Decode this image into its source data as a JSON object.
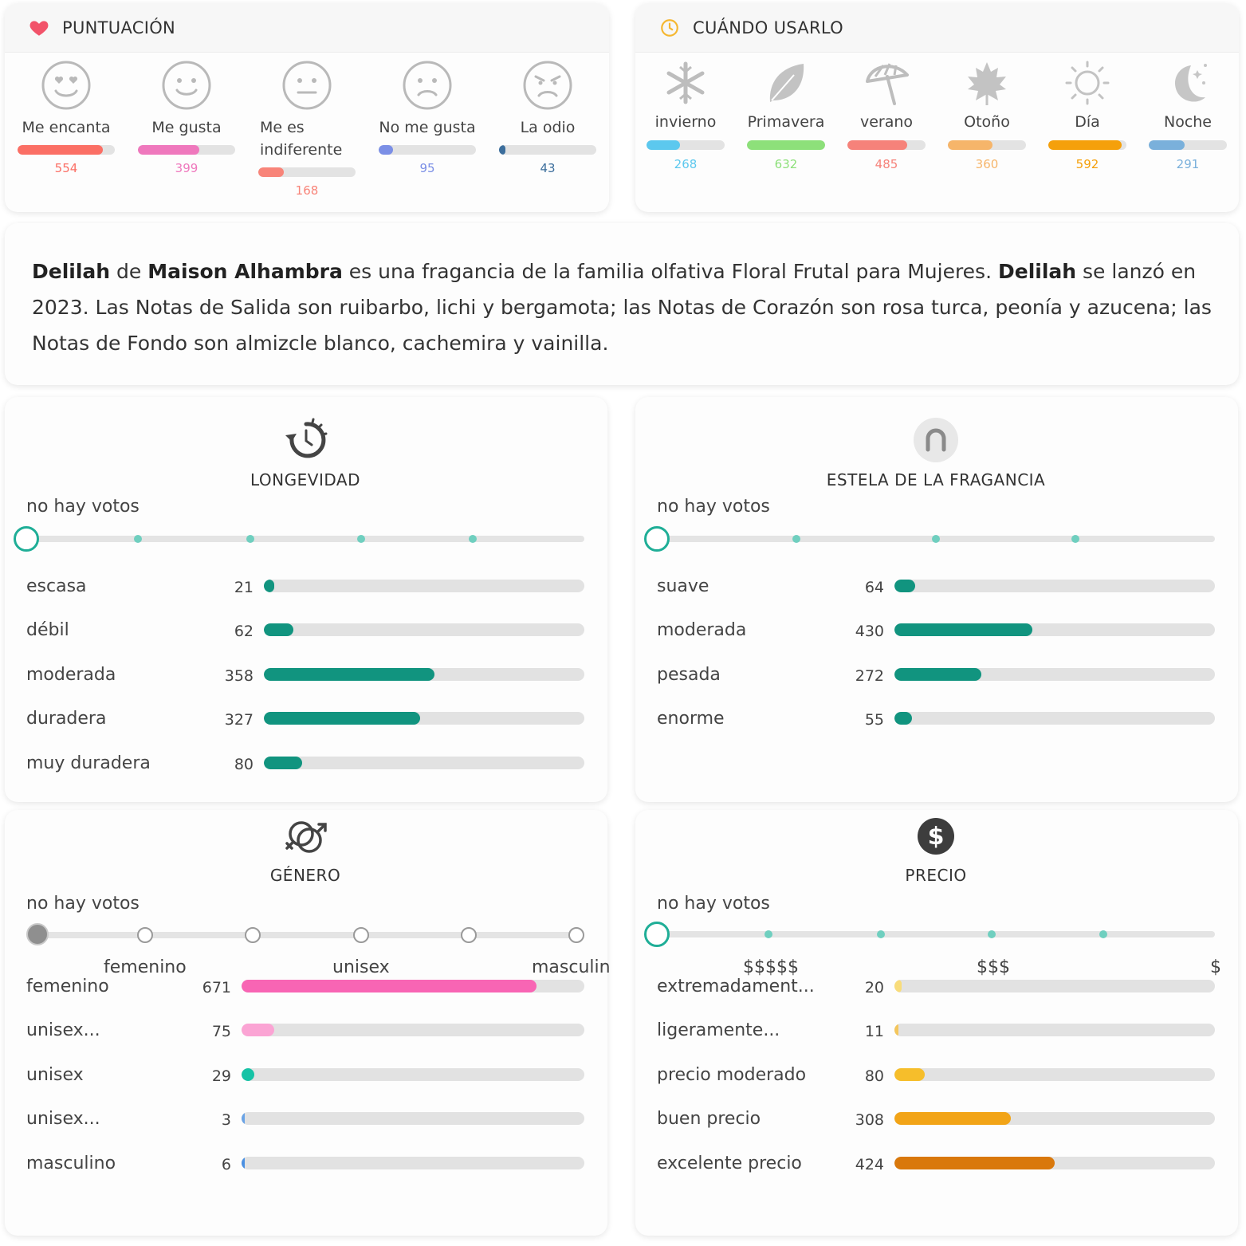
{
  "rating": {
    "title": "PUNTUACIÓN",
    "items": [
      {
        "label": "Me encanta",
        "count": "554",
        "value": 554,
        "color": "#fb6f65"
      },
      {
        "label": "Me gusta",
        "count": "399",
        "value": 399,
        "color": "#ef78bd"
      },
      {
        "label": "Me es indiferente",
        "count": "168",
        "value": 168,
        "color": "#f88479"
      },
      {
        "label": "No me gusta",
        "count": "95",
        "value": 95,
        "color": "#7b8fe6"
      },
      {
        "label": "La odio",
        "count": "43",
        "value": 43,
        "color": "#3c6e9c"
      }
    ],
    "max": 632
  },
  "when": {
    "title": "CUÁNDO USARLO",
    "items": [
      {
        "label": "invierno",
        "count": "268",
        "value": 268,
        "color": "#5cc8ee"
      },
      {
        "label": "Primavera",
        "count": "632",
        "value": 632,
        "color": "#8de07a"
      },
      {
        "label": "verano",
        "count": "485",
        "value": 485,
        "color": "#f6827a"
      },
      {
        "label": "Otoño",
        "count": "360",
        "value": 360,
        "color": "#f6b56a"
      },
      {
        "label": "Día",
        "count": "592",
        "value": 592,
        "color": "#f5a00b"
      },
      {
        "label": "Noche",
        "count": "291",
        "value": 291,
        "color": "#7ab0db"
      }
    ],
    "max": 632
  },
  "description": {
    "name": "Delilah",
    "de": " de ",
    "brand": "Maison Alhambra",
    "part1": " es una fragancia de la familia olfativa Floral Frutal para Mujeres. ",
    "name2": "Delilah",
    "part2": " se lanzó en 2023. Las Notas de Salida son ruibarbo, lichi y bergamota; las Notas de Corazón son rosa turca, peonía y azucena; las Notas de Fondo son almizcle blanco, cachemira y vainilla."
  },
  "longevity": {
    "title": "LONGEVIDAD",
    "novote": "no hay votos",
    "color": "#11947f",
    "max": 671,
    "rows": [
      {
        "label": "escasa",
        "count": "21",
        "value": 21
      },
      {
        "label": "débil",
        "count": "62",
        "value": 62
      },
      {
        "label": "moderada",
        "count": "358",
        "value": 358
      },
      {
        "label": "duradera",
        "count": "327",
        "value": 327
      },
      {
        "label": "muy duradera",
        "count": "80",
        "value": 80
      }
    ]
  },
  "sillage": {
    "title": "ESTELA DE LA FRAGANCIA",
    "novote": "no hay votos",
    "color": "#11947f",
    "max": 1000,
    "rows": [
      {
        "label": "suave",
        "count": "64",
        "value": 64
      },
      {
        "label": "moderada",
        "count": "430",
        "value": 430
      },
      {
        "label": "pesada",
        "count": "272",
        "value": 272
      },
      {
        "label": "enorme",
        "count": "55",
        "value": 55
      }
    ]
  },
  "gender": {
    "title": "GÉNERO",
    "novote": "no hay votos",
    "ticks": [
      "femenino",
      "unisex",
      "masculin"
    ],
    "max": 780,
    "rows": [
      {
        "label": "femenino",
        "count": "671",
        "value": 671,
        "color": "#f865b4"
      },
      {
        "label": "unisex...",
        "count": "75",
        "value": 75,
        "color": "#fba4d4"
      },
      {
        "label": "unisex",
        "count": "29",
        "value": 29,
        "color": "#16c3a6"
      },
      {
        "label": "unisex...",
        "count": "3",
        "value": 3,
        "color": "#6aa3e5"
      },
      {
        "label": "masculino",
        "count": "6",
        "value": 6,
        "color": "#4a90e2"
      }
    ]
  },
  "price": {
    "title": "PRECIO",
    "novote": "no hay votos",
    "ticks": [
      "$$$$$",
      "$$$",
      "$"
    ],
    "max": 850,
    "rows": [
      {
        "label": "extremadament...",
        "count": "20",
        "value": 20,
        "color": "#f8dc7a"
      },
      {
        "label": "ligeramente...",
        "count": "11",
        "value": 11,
        "color": "#f4c65c"
      },
      {
        "label": "precio moderado",
        "count": "80",
        "value": 80,
        "color": "#f6be2b"
      },
      {
        "label": "buen precio",
        "count": "308",
        "value": 308,
        "color": "#f2a417"
      },
      {
        "label": "excelente precio",
        "count": "424",
        "value": 424,
        "color": "#d9780b"
      }
    ]
  }
}
